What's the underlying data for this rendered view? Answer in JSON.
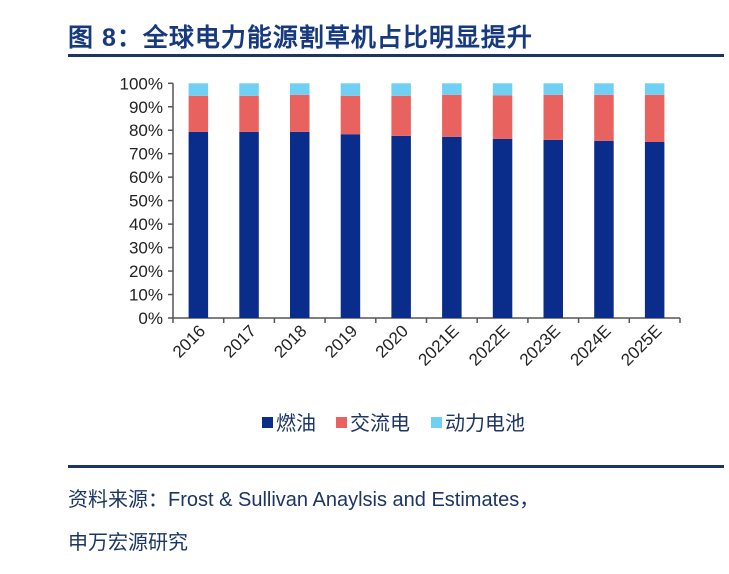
{
  "title": "图 8：全球电力能源割草机占比明显提升",
  "source_line1": "资料来源：Frost & Sullivan Anaylsis and Estimates，",
  "source_line2": "申万宏源研究",
  "chart_data": {
    "type": "bar",
    "stacked": true,
    "categories": [
      "2016",
      "2017",
      "2018",
      "2019",
      "2020",
      "2021E",
      "2022E",
      "2023E",
      "2024E",
      "2025E"
    ],
    "series": [
      {
        "name": "燃油",
        "color": "#0a2d8c",
        "values": [
          79.3,
          79.3,
          79.3,
          78.3,
          77.6,
          77.2,
          76.3,
          75.9,
          75.5,
          75.0
        ]
      },
      {
        "name": "交流电",
        "color": "#e8625f",
        "values": [
          15.4,
          15.4,
          15.8,
          16.4,
          17.1,
          17.9,
          18.6,
          19.2,
          19.6,
          20.1
        ]
      },
      {
        "name": "动力电池",
        "color": "#6fd0f4",
        "values": [
          5.3,
          5.3,
          4.9,
          5.3,
          5.3,
          4.9,
          5.1,
          4.9,
          4.9,
          4.9
        ]
      }
    ],
    "yticks": [
      "0%",
      "10%",
      "20%",
      "30%",
      "40%",
      "50%",
      "60%",
      "70%",
      "80%",
      "90%",
      "100%"
    ],
    "ylim": [
      0,
      100
    ],
    "legend": "bottom",
    "grid": false
  }
}
